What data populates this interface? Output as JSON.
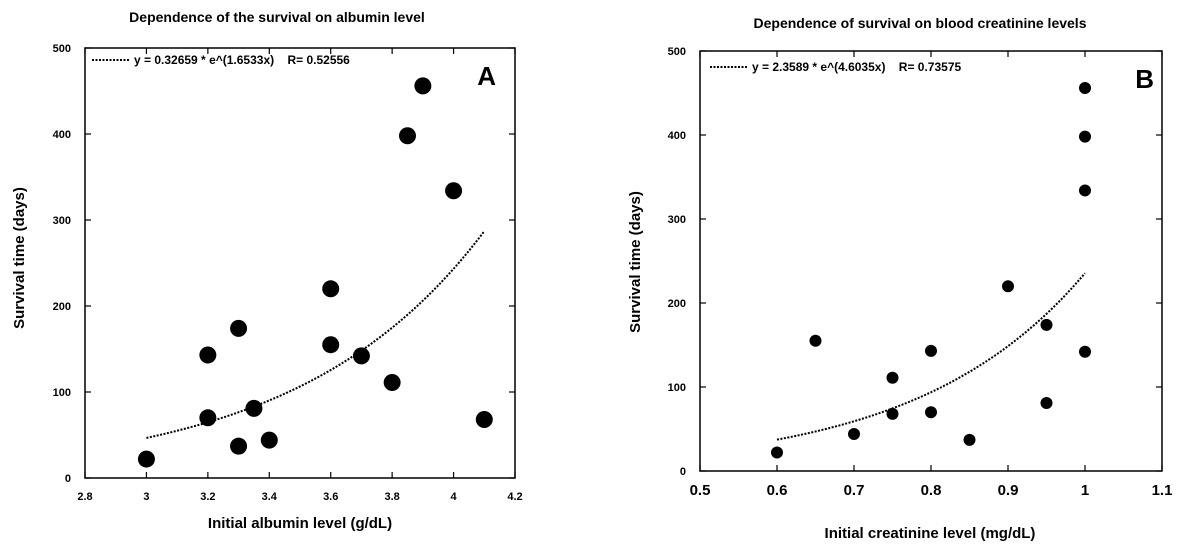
{
  "chart_data": [
    {
      "type": "scatter",
      "title": "Dependence of the survival on albumin level",
      "xlabel": "Initial albumin level (g/dL)",
      "ylabel": "Survival time (days)",
      "xlim": [
        2.8,
        4.2
      ],
      "ylim": [
        0,
        500
      ],
      "xticks": [
        "2.8",
        "3",
        "3.2",
        "3.4",
        "3.6",
        "3.8",
        "4",
        "4.2"
      ],
      "yticks": [
        "0",
        "100",
        "200",
        "300",
        "400",
        "500"
      ],
      "panel_label": "A",
      "fit_label": "y = 0.32659 * e^(1.6533x)    R= 0.52556",
      "fit": {
        "a": 0.32659,
        "b": 1.6533,
        "x_from": 3.0,
        "x_to": 4.1
      },
      "legend": "top-left",
      "grid": false,
      "points": [
        {
          "x": 3.0,
          "y": 22
        },
        {
          "x": 3.2,
          "y": 143
        },
        {
          "x": 3.2,
          "y": 70
        },
        {
          "x": 3.3,
          "y": 174
        },
        {
          "x": 3.3,
          "y": 37
        },
        {
          "x": 3.35,
          "y": 81
        },
        {
          "x": 3.4,
          "y": 44
        },
        {
          "x": 3.6,
          "y": 220
        },
        {
          "x": 3.6,
          "y": 155
        },
        {
          "x": 3.7,
          "y": 142
        },
        {
          "x": 3.8,
          "y": 111
        },
        {
          "x": 3.85,
          "y": 398
        },
        {
          "x": 3.9,
          "y": 456
        },
        {
          "x": 4.0,
          "y": 334
        },
        {
          "x": 4.1,
          "y": 68
        }
      ]
    },
    {
      "type": "scatter",
      "title": "Dependence of survival on blood creatinine levels",
      "xlabel": "Initial creatinine level (mg/dL)",
      "ylabel": "Survival time (days)",
      "xlim": [
        0.5,
        1.1
      ],
      "ylim": [
        0,
        500
      ],
      "xticks": [
        "0.5",
        "0.6",
        "0.7",
        "0.8",
        "0.9",
        "1",
        "1.1"
      ],
      "yticks": [
        "0",
        "100",
        "200",
        "300",
        "400",
        "500"
      ],
      "panel_label": "B",
      "fit_label": "y = 2.3589 * e^(4.6035x)    R= 0.73575",
      "fit": {
        "a": 2.3589,
        "b": 4.6035,
        "x_from": 0.6,
        "x_to": 1.0
      },
      "legend": "top-left",
      "grid": false,
      "points": [
        {
          "x": 0.6,
          "y": 22
        },
        {
          "x": 0.65,
          "y": 155
        },
        {
          "x": 0.7,
          "y": 44
        },
        {
          "x": 0.75,
          "y": 111
        },
        {
          "x": 0.75,
          "y": 68
        },
        {
          "x": 0.8,
          "y": 143
        },
        {
          "x": 0.8,
          "y": 70
        },
        {
          "x": 0.85,
          "y": 37
        },
        {
          "x": 0.9,
          "y": 220
        },
        {
          "x": 0.95,
          "y": 174
        },
        {
          "x": 0.95,
          "y": 81
        },
        {
          "x": 1.0,
          "y": 456
        },
        {
          "x": 1.0,
          "y": 398
        },
        {
          "x": 1.0,
          "y": 334
        },
        {
          "x": 1.0,
          "y": 142
        }
      ]
    }
  ]
}
